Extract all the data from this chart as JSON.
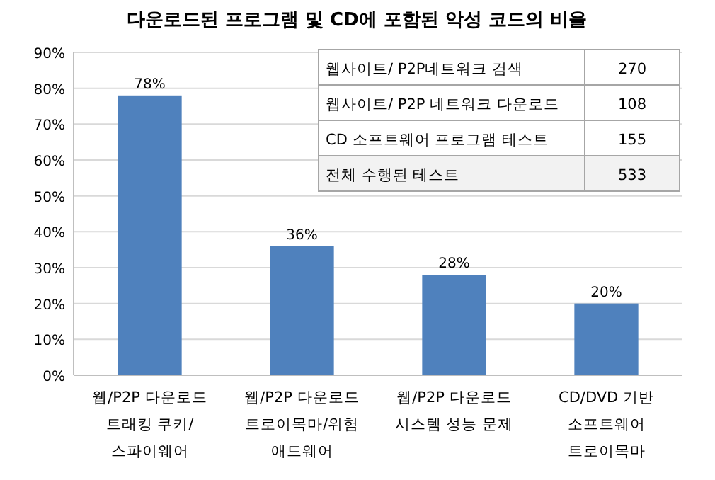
{
  "chart_data": {
    "type": "bar",
    "title": "다운로드된 프로그램 및 CD에 포함된 악성 코드의 비율",
    "categories": [
      "웹/P2P 다운로드\n트래킹 쿠키/\n스파이웨어",
      "웹/P2P 다운로드\n트로이목마/위험\n애드웨어",
      "웹/P2P 다운로드\n시스템 성능 문제",
      "CD/DVD 기반\n소프트웨어\n트로이목마"
    ],
    "values": [
      78,
      36,
      28,
      20
    ],
    "value_labels": [
      "78%",
      "36%",
      "28%",
      "20%"
    ],
    "color": "#4f81bd",
    "ylim": [
      0,
      90
    ],
    "yticks": [
      {
        "value": 0,
        "label": "0%"
      },
      {
        "value": 10,
        "label": "10%"
      },
      {
        "value": 20,
        "label": "20%"
      },
      {
        "value": 30,
        "label": "30%"
      },
      {
        "value": 40,
        "label": "40%"
      },
      {
        "value": 50,
        "label": "50%"
      },
      {
        "value": 60,
        "label": "60%"
      },
      {
        "value": 70,
        "label": "70%"
      },
      {
        "value": 80,
        "label": "80%"
      },
      {
        "value": 90,
        "label": "90%"
      }
    ],
    "grid": "y",
    "annotations": [
      "웹사이트/ P2P네트워크 검색",
      "270",
      "웹사이트/ P2P 네트워크 다운로드",
      "108",
      "CD 소프트웨어 프로그램 테스트",
      "155",
      "전체 수행된 테스트",
      "533"
    ]
  }
}
